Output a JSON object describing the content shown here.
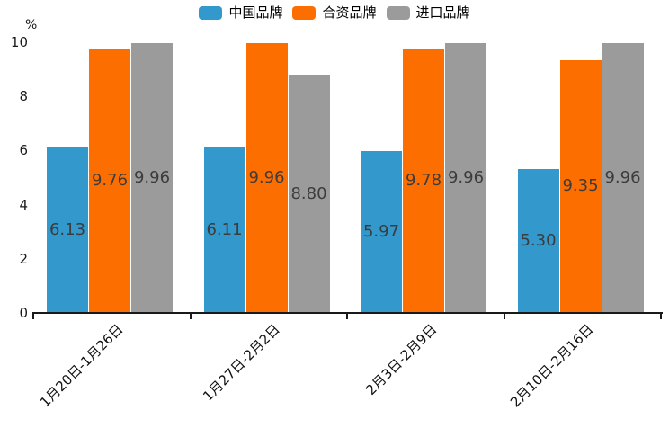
{
  "chart_data": {
    "type": "bar",
    "title": "",
    "unit_label": "%",
    "categories": [
      "1月20日-1月26日",
      "1月27日-2月2日",
      "2月3日-2月9日",
      "2月10日-2月16日"
    ],
    "series": [
      {
        "name": "中国品牌",
        "color": "#3398cc",
        "values": [
          6.13,
          6.11,
          5.97,
          5.3
        ]
      },
      {
        "name": "合资品牌",
        "color": "#fd6e01",
        "values": [
          9.76,
          9.96,
          9.78,
          9.35
        ]
      },
      {
        "name": "进口品牌",
        "color": "#9b9b9b",
        "values": [
          9.96,
          8.8,
          9.96,
          9.96
        ]
      }
    ],
    "data_label_decimals": 2,
    "ylim": [
      0,
      10
    ],
    "yticks": [
      0,
      2,
      4,
      6,
      8,
      10
    ],
    "legend_position": "top",
    "grid": false,
    "axis_color": "#1a1a1a",
    "label_color": "#3c3c3c"
  }
}
